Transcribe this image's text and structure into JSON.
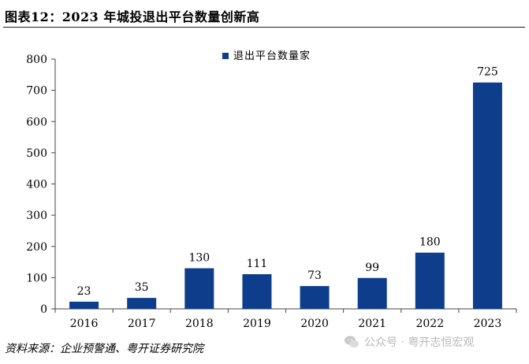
{
  "figure": {
    "title": "图表12：2023 年城投退出平台数量创新高",
    "source": "资料来源：企业预警通、粤开证券研究院",
    "watermark": "公众号 · 粤开志恒宏观"
  },
  "colors": {
    "bar": "#0e3d8c",
    "axis": "#444444",
    "wechat_icon": "#c8c8c8"
  },
  "chart_data": {
    "type": "bar",
    "categories": [
      "2016",
      "2017",
      "2018",
      "2019",
      "2020",
      "2021",
      "2022",
      "2023"
    ],
    "series": [
      {
        "name": "退出平台数量家",
        "values": [
          23,
          35,
          130,
          111,
          73,
          99,
          180,
          725
        ]
      }
    ],
    "ylim": [
      0,
      800
    ],
    "yticks": [
      0,
      100,
      200,
      300,
      400,
      500,
      600,
      700,
      800
    ],
    "grid": false,
    "legend": "top-center",
    "data_labels": true
  }
}
